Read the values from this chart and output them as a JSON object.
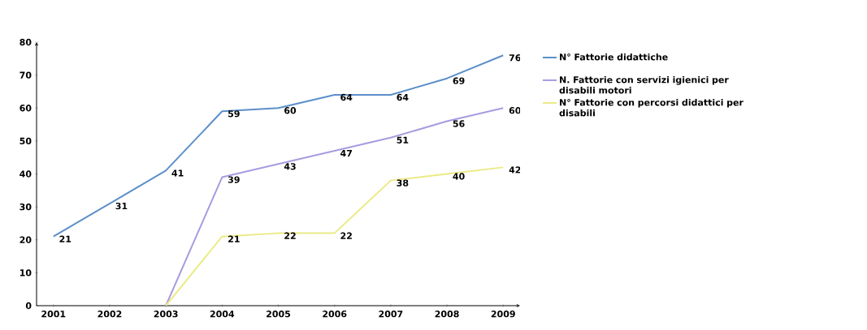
{
  "chart_data": {
    "type": "line",
    "categories": [
      "2001",
      "2002",
      "2003",
      "2004",
      "2005",
      "2006",
      "2007",
      "2008",
      "2009"
    ],
    "series": [
      {
        "name": "N° Fattorie didattiche",
        "color": "#5b8fc9",
        "values": [
          21,
          31,
          41,
          59,
          60,
          64,
          64,
          69,
          76
        ],
        "value_labels": [
          "21",
          "31",
          "41",
          "59",
          "60",
          "64",
          "64",
          "69",
          "76"
        ]
      },
      {
        "name": "N. Fattorie con servizi igienici per disabili motori",
        "color": "#a99be0",
        "values": [
          null,
          null,
          0,
          39,
          43,
          47,
          51,
          56,
          60
        ],
        "value_labels": [
          null,
          null,
          null,
          "39",
          "43",
          "47",
          "51",
          "56",
          "60"
        ]
      },
      {
        "name": "N° Fattorie con percorsi didattici per disabili",
        "color": "#ecea86",
        "values": [
          null,
          null,
          0,
          21,
          22,
          22,
          38,
          40,
          42
        ],
        "value_labels": [
          null,
          null,
          null,
          "21",
          "22",
          "22",
          "38",
          "40",
          "42"
        ]
      }
    ],
    "ylim": [
      0,
      80
    ],
    "yticks": [
      0,
      10,
      20,
      30,
      40,
      50,
      60,
      70,
      80
    ],
    "legend": "right"
  }
}
